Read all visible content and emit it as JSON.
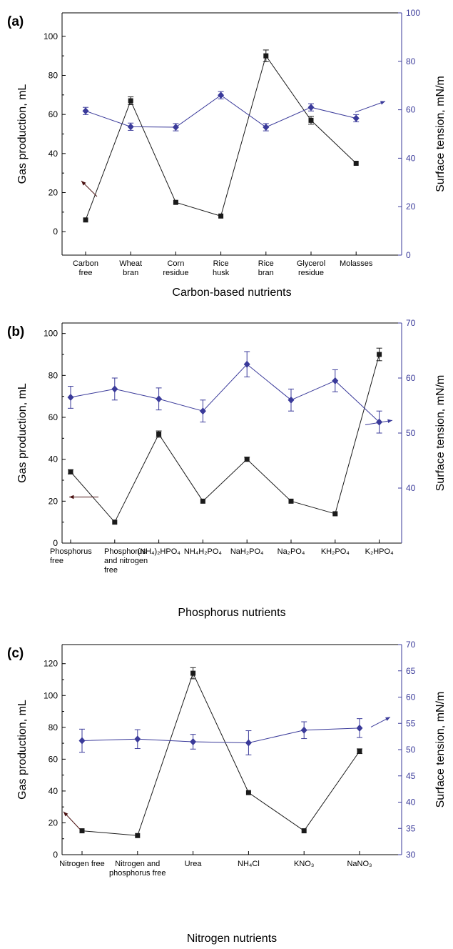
{
  "colors": {
    "gas": "#1a1a1a",
    "tension": "#3a3a9a",
    "axis": "#000000",
    "right_axis": "#3a3a9a"
  },
  "chart_data": [
    {
      "type": "line",
      "panel_label": "(a)",
      "xlabel": "Carbon-based nutrients",
      "ylabel": "Gas production, mL",
      "ylabel_right": "Surface tension, mN/m",
      "categories": [
        [
          "Carbon",
          "free"
        ],
        [
          "Wheat",
          "bran"
        ],
        [
          "Corn",
          "residue"
        ],
        [
          "Rice",
          "husk"
        ],
        [
          "Rice",
          "bran"
        ],
        [
          "Glycerol",
          "residue"
        ],
        [
          "Molasses"
        ]
      ],
      "ylim": [
        -12,
        112
      ],
      "yticks": [
        0,
        20,
        40,
        60,
        80,
        100
      ],
      "ylim_right": [
        0,
        100
      ],
      "yticks_right": [
        0,
        20,
        40,
        60,
        80,
        100
      ],
      "grid": false,
      "series": [
        {
          "axis": "left",
          "marker": "square",
          "values": [
            6,
            67,
            15,
            8,
            90,
            57,
            35
          ],
          "errors": [
            0,
            2,
            0,
            0,
            3,
            2,
            0
          ]
        },
        {
          "axis": "right",
          "marker": "diamond",
          "values": [
            59.5,
            53,
            52.8,
            66,
            52.8,
            61,
            56.5
          ],
          "errors": [
            1.5,
            1.5,
            1.5,
            1.5,
            1.5,
            1.5,
            1.5
          ]
        }
      ],
      "arrows": [
        {
          "axis": "left",
          "direction": "left",
          "near": 1
        },
        {
          "axis": "right",
          "direction": "right",
          "near": 6
        }
      ]
    },
    {
      "type": "line",
      "panel_label": "(b)",
      "xlabel": "Phosphorus nutrients",
      "ylabel": "Gas production, mL",
      "ylabel_right": "Surface tension, mN/m",
      "categories": [
        [
          "Phosphorus",
          "free"
        ],
        [
          "Phosphorus",
          "and nitrogen",
          "free"
        ],
        [
          "(NH₄)₂HPO₄"
        ],
        [
          "NH₄H₂PO₄"
        ],
        [
          "NaH₂PO₄"
        ],
        [
          "Na₂PO₄"
        ],
        [
          "KH₂PO₄"
        ],
        [
          "K₂HPO₄"
        ]
      ],
      "ylim": [
        0,
        105
      ],
      "yticks": [
        0,
        20,
        40,
        60,
        80,
        100
      ],
      "ylim_right": [
        30,
        70
      ],
      "yticks_right": [
        40,
        50,
        60,
        70
      ],
      "grid": false,
      "series": [
        {
          "axis": "left",
          "marker": "square",
          "values": [
            34,
            10,
            52,
            20,
            40,
            20,
            14,
            90
          ],
          "errors": [
            1,
            0,
            1.5,
            0,
            1,
            0,
            0,
            3
          ]
        },
        {
          "axis": "right",
          "marker": "diamond",
          "values": [
            56.5,
            58,
            56.2,
            54,
            62.5,
            56,
            59.5,
            52
          ],
          "errors": [
            2,
            2,
            2,
            2,
            2.3,
            2,
            2,
            2
          ]
        }
      ],
      "arrows": [
        {
          "axis": "left",
          "direction": "left",
          "near": 0
        },
        {
          "axis": "right",
          "direction": "right",
          "near": 7
        }
      ]
    },
    {
      "type": "line",
      "panel_label": "(c)",
      "xlabel": "Nitrogen nutrients",
      "ylabel": "Gas production, mL",
      "ylabel_right": "Surface tension, mN/m",
      "categories": [
        [
          "Nitrogen free"
        ],
        [
          "Nitrogen and",
          "phosphorus free"
        ],
        [
          "Urea"
        ],
        [
          "NH₄Cl"
        ],
        [
          "KNO₃"
        ],
        [
          "NaNO₃"
        ]
      ],
      "ylim": [
        0,
        132
      ],
      "yticks": [
        0,
        20,
        40,
        60,
        80,
        100,
        120
      ],
      "ylim_right": [
        30,
        70
      ],
      "yticks_right": [
        30,
        35,
        40,
        45,
        50,
        55,
        60,
        65,
        70
      ],
      "grid": false,
      "series": [
        {
          "axis": "left",
          "marker": "square",
          "values": [
            15,
            12,
            114,
            39,
            15,
            65
          ],
          "errors": [
            0,
            0,
            3.5,
            0,
            0,
            1.5
          ]
        },
        {
          "axis": "right",
          "marker": "diamond",
          "values": [
            51.7,
            52,
            51.5,
            51.3,
            53.7,
            54.1
          ],
          "errors": [
            2.2,
            1.8,
            1.4,
            2.3,
            1.6,
            1.8
          ]
        }
      ],
      "arrows": [
        {
          "axis": "left",
          "direction": "left",
          "near": 0
        },
        {
          "axis": "right",
          "direction": "right",
          "near": 5
        }
      ]
    }
  ]
}
